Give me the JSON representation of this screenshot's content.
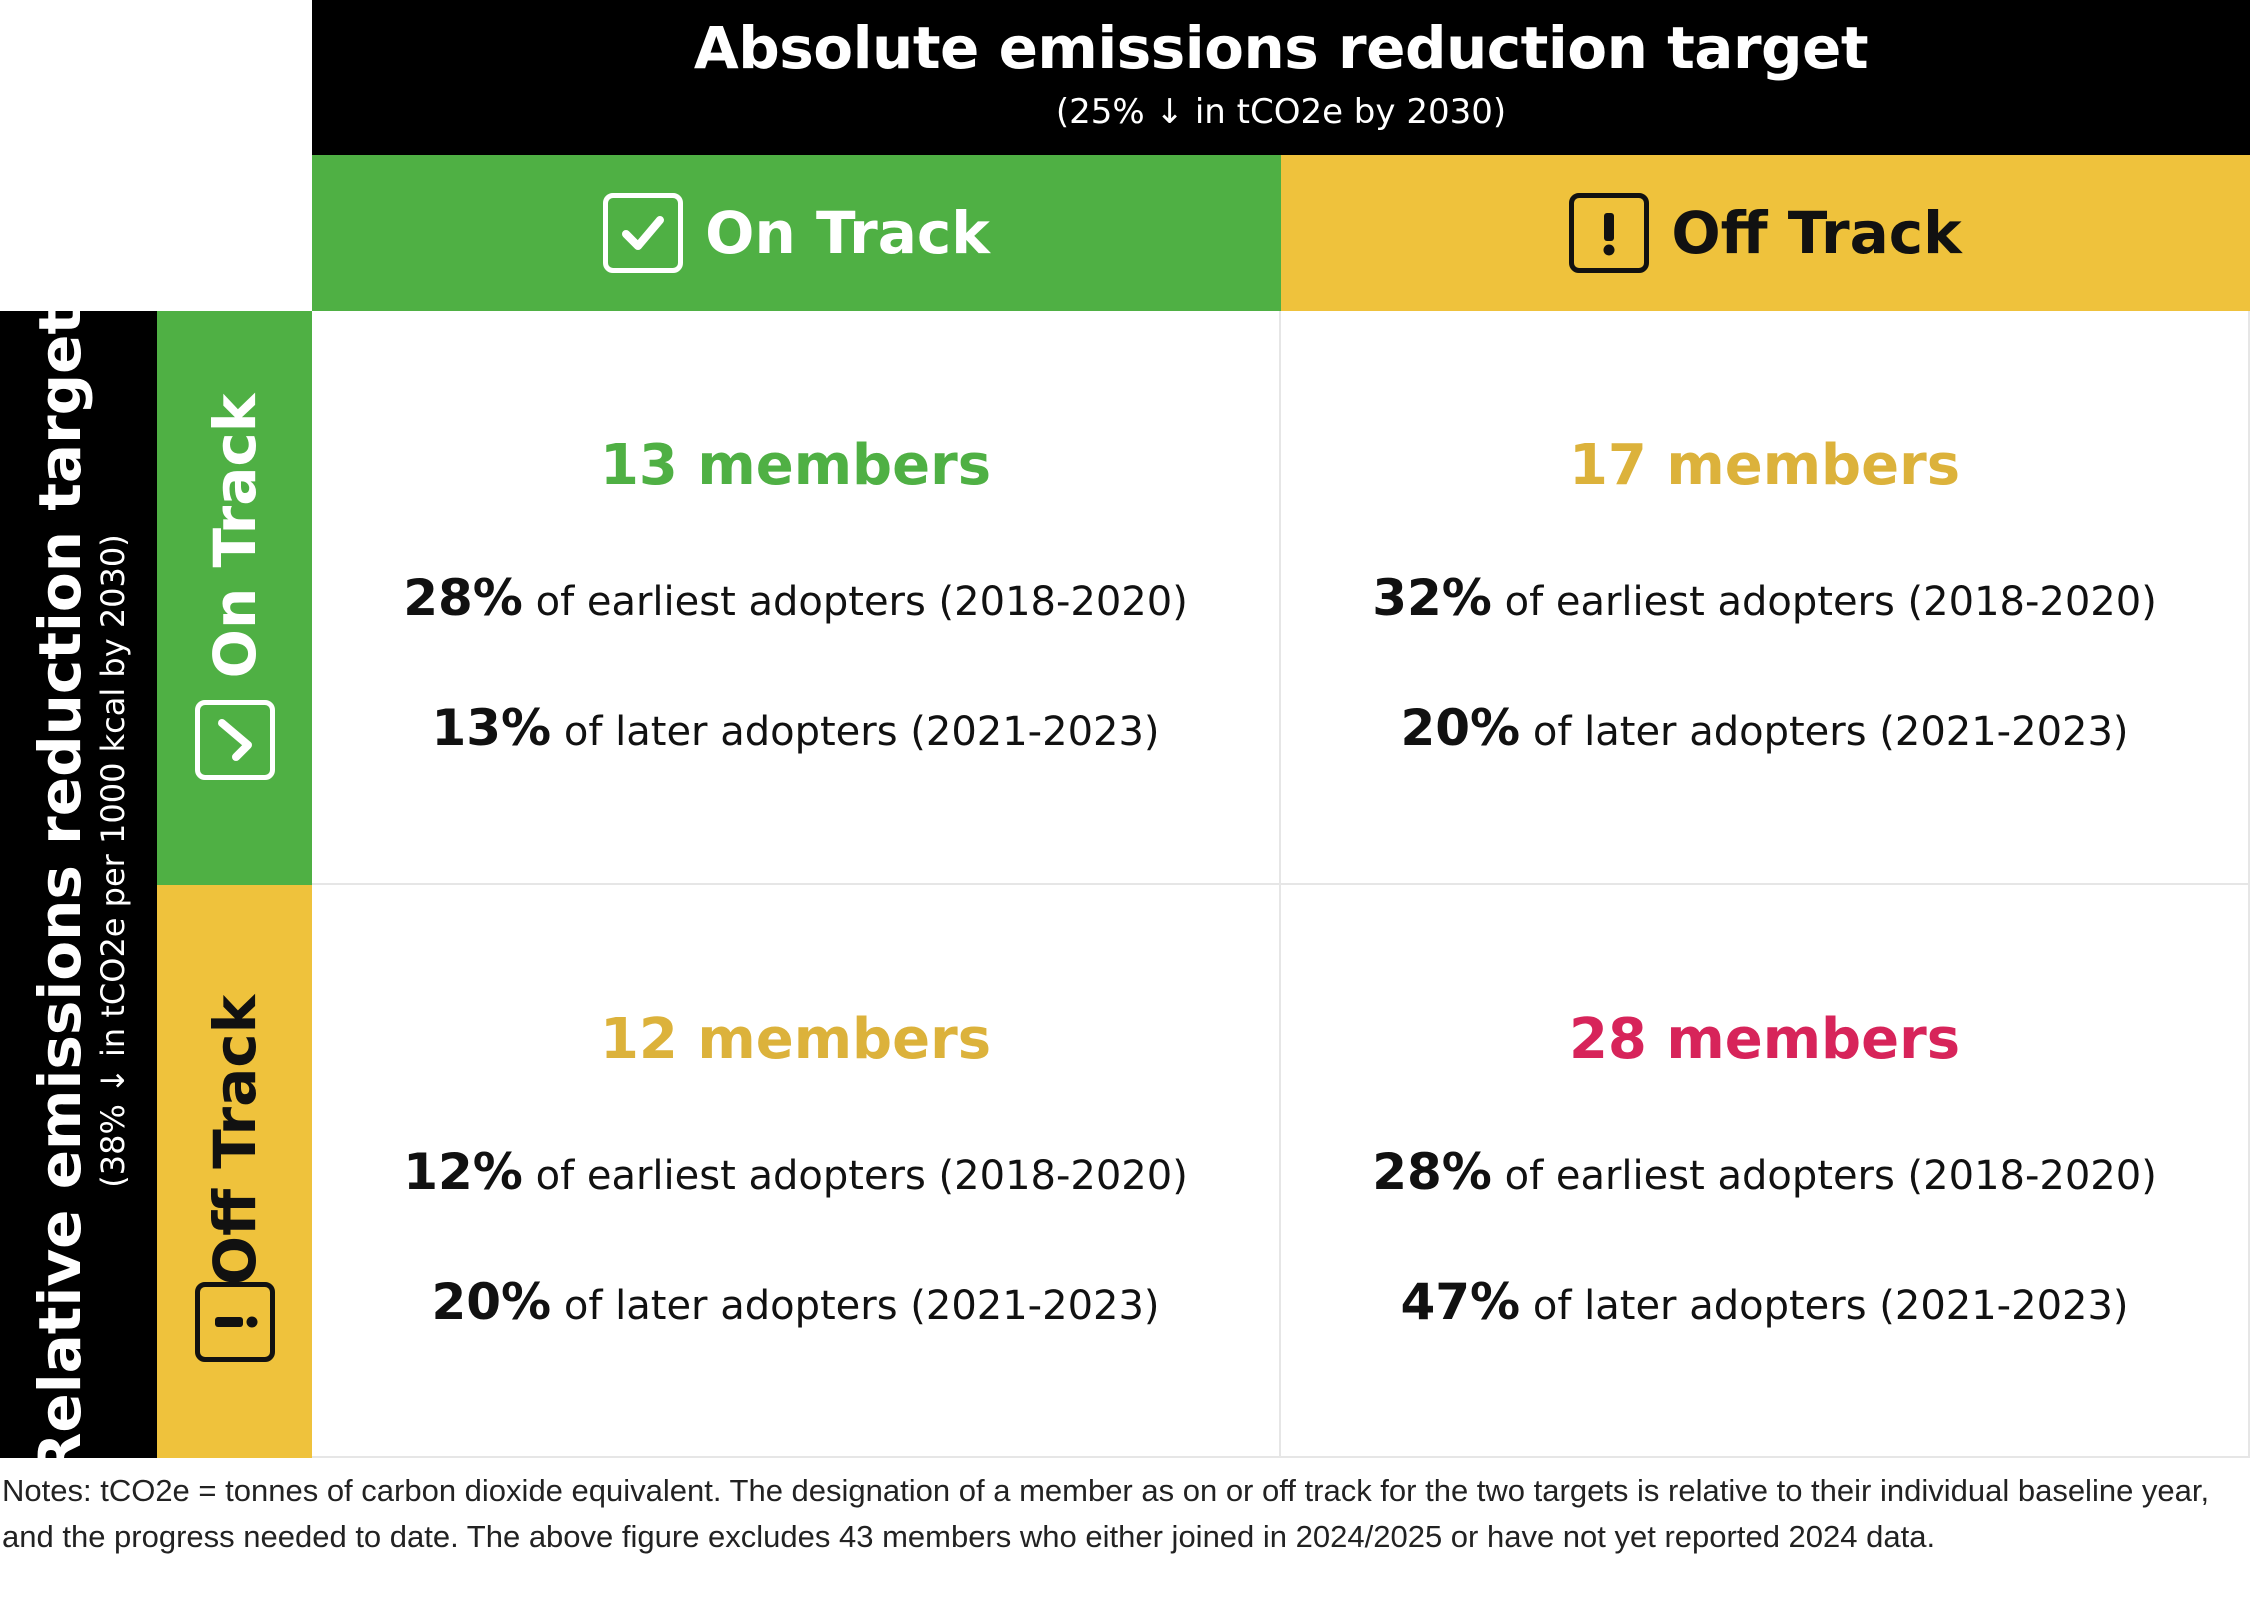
{
  "top_header": {
    "title": "Absolute emissions reduction target",
    "subtitle": "(25% ↓ in tCO2e by 2030)"
  },
  "left_header": {
    "title": "Relative emissions reduction target",
    "subtitle": "(38% ↓ in tCO2e per 1000 kcal by 2030)"
  },
  "columns": [
    {
      "label": "On Track",
      "icon": "check-icon",
      "color": "#4fb044"
    },
    {
      "label": "Off Track",
      "icon": "exclamation-icon",
      "color": "#efc23c"
    }
  ],
  "rows": [
    {
      "label": "On Track",
      "icon": "check-icon",
      "color": "#4fb044"
    },
    {
      "label": "Off Track",
      "icon": "exclamation-icon",
      "color": "#efc23c"
    }
  ],
  "cells": {
    "on_on": {
      "members": "13 members",
      "color": "#4fb044",
      "stat1_pct": "28%",
      "stat1_text": " of earliest adopters (2018-2020)",
      "stat2_pct": "13%",
      "stat2_text": " of later adopters (2021-2023)"
    },
    "on_off": {
      "members": "17 members",
      "color": "#dcb23b",
      "stat1_pct": "32%",
      "stat1_text": " of earliest adopters (2018-2020)",
      "stat2_pct": "20%",
      "stat2_text": " of later adopters (2021-2023)"
    },
    "off_on": {
      "members": "12 members",
      "color": "#dcb23b",
      "stat1_pct": "12%",
      "stat1_text": " of earliest adopters (2018-2020)",
      "stat2_pct": "20%",
      "stat2_text": " of later adopters (2021-2023)"
    },
    "off_off": {
      "members": "28 members",
      "color": "#d7245a",
      "stat1_pct": "28%",
      "stat1_text": " of earliest adopters (2018-2020)",
      "stat2_pct": "47%",
      "stat2_text": " of later adopters (2021-2023)"
    }
  },
  "notes": "Notes: tCO2e = tonnes of carbon dioxide equivalent. The designation of a member as on or off track for the two targets is relative to their individual baseline year, and the progress needed to date. The above figure excludes 43 members who either joined in 2024/2025 or have not yet reported 2024 data."
}
